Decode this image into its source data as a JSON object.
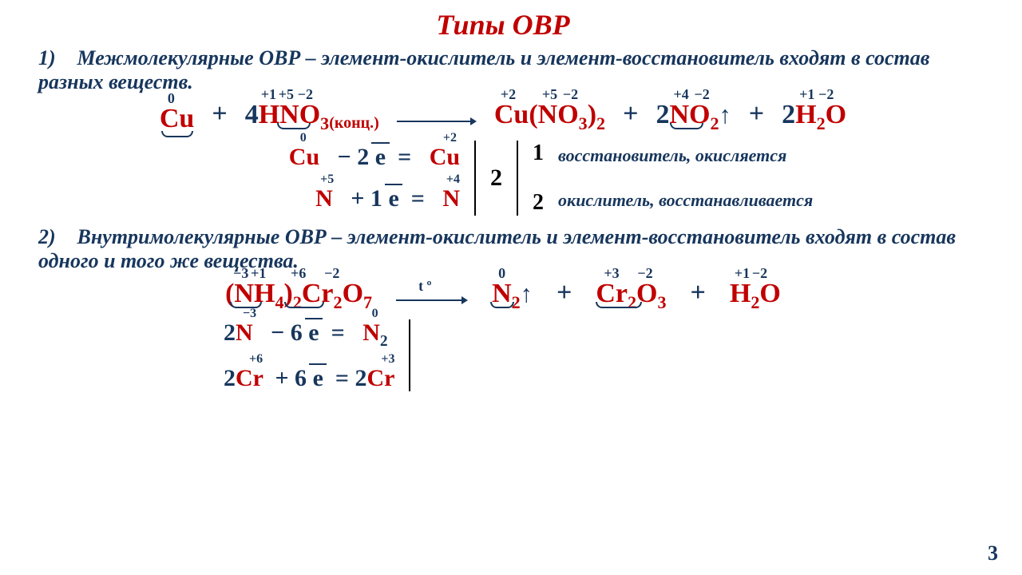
{
  "colors": {
    "red": "#c00000",
    "navy": "#17365d",
    "black": "#000000"
  },
  "title": "Типы ОВР",
  "page_number": "3",
  "sections": [
    {
      "num": "1)",
      "term": "Межмолекулярные ОВР",
      "text": " – элемент-окислитель и элемент-восстановитель входят в состав разных веществ."
    },
    {
      "num": "2)",
      "term": "Внутримолекулярные ОВР",
      "text": " – элемент-окислитель и элемент-восстановитель входят в состав одного и того же вещества."
    }
  ],
  "eq1": {
    "t1": {
      "ox": [
        [
          "0",
          10
        ]
      ],
      "coef": "",
      "formula": "Cu"
    },
    "t2": {
      "ox": [
        [
          "+1",
          20
        ],
        [
          "+5",
          40
        ],
        [
          "−2",
          62
        ]
      ],
      "coef": "4",
      "formula": "HNO<sub>3</sub>",
      "sub": "(конц.)"
    },
    "t3": {
      "ox": [
        [
          "+2",
          8
        ],
        [
          "+5",
          60
        ],
        [
          "−2",
          84
        ]
      ],
      "coef": "",
      "formula": "Cu(NO<sub>3</sub>)<sub>2</sub>"
    },
    "t4": {
      "ox": [
        [
          "+4",
          22
        ],
        [
          "−2",
          46
        ]
      ],
      "coef": "2",
      "formula": "NO<sub>2</sub>",
      "gas": true
    },
    "t5": {
      "ox": [
        [
          "+1",
          22
        ],
        [
          "−2",
          44
        ]
      ],
      "coef": "2",
      "formula": "H<sub>2</sub>O"
    }
  },
  "bal1": {
    "l1": {
      "lhs": "Cu",
      "lhs_ox": "0",
      "op": "− 2",
      "e": "e",
      "rhs": "Cu",
      "rhs_ox": "+2"
    },
    "l2": {
      "lhs": "N",
      "lhs_ox": "+5",
      "op": "+ 1",
      "e": "e",
      "rhs": "N",
      "rhs_ox": "+4"
    },
    "common": "2",
    "m1": "1",
    "m2": "2",
    "lab1": "восстановитель, окисляется",
    "lab2": "окислитель, восстанавливается"
  },
  "eq2": {
    "t1": {
      "ox": [
        [
          "−3",
          6
        ],
        [
          "+1",
          26
        ],
        [
          "+6",
          76
        ],
        [
          "−2",
          118
        ]
      ],
      "formula": "(NH<sub>4</sub>)<sub>2</sub>Cr<sub>2</sub>O<sub>7</sub>"
    },
    "cond": "t º",
    "t2": {
      "ox": [
        [
          "0",
          6
        ]
      ],
      "formula": "N<sub>2</sub>",
      "gas": true
    },
    "t3": {
      "ox": [
        [
          "+3",
          10
        ],
        [
          "−2",
          50
        ]
      ],
      "formula": "Cr<sub>2</sub>O<sub>3</sub>"
    },
    "t4": {
      "ox": [
        [
          "+1",
          4
        ],
        [
          "−2",
          26
        ]
      ],
      "formula": "H<sub>2</sub>O"
    }
  },
  "bal2": {
    "l1": {
      "lhs": "2N",
      "lhs_ox": "−3",
      "op": "− 6",
      "e": "e",
      "rhs": "N<sub>2</sub>",
      "rhs_ox": "0"
    },
    "l2": {
      "lhs": "2Cr",
      "lhs_ox": "+6",
      "op": "+ 6",
      "e": "e",
      "rhs": "2Cr",
      "rhs_ox": "+3"
    }
  }
}
